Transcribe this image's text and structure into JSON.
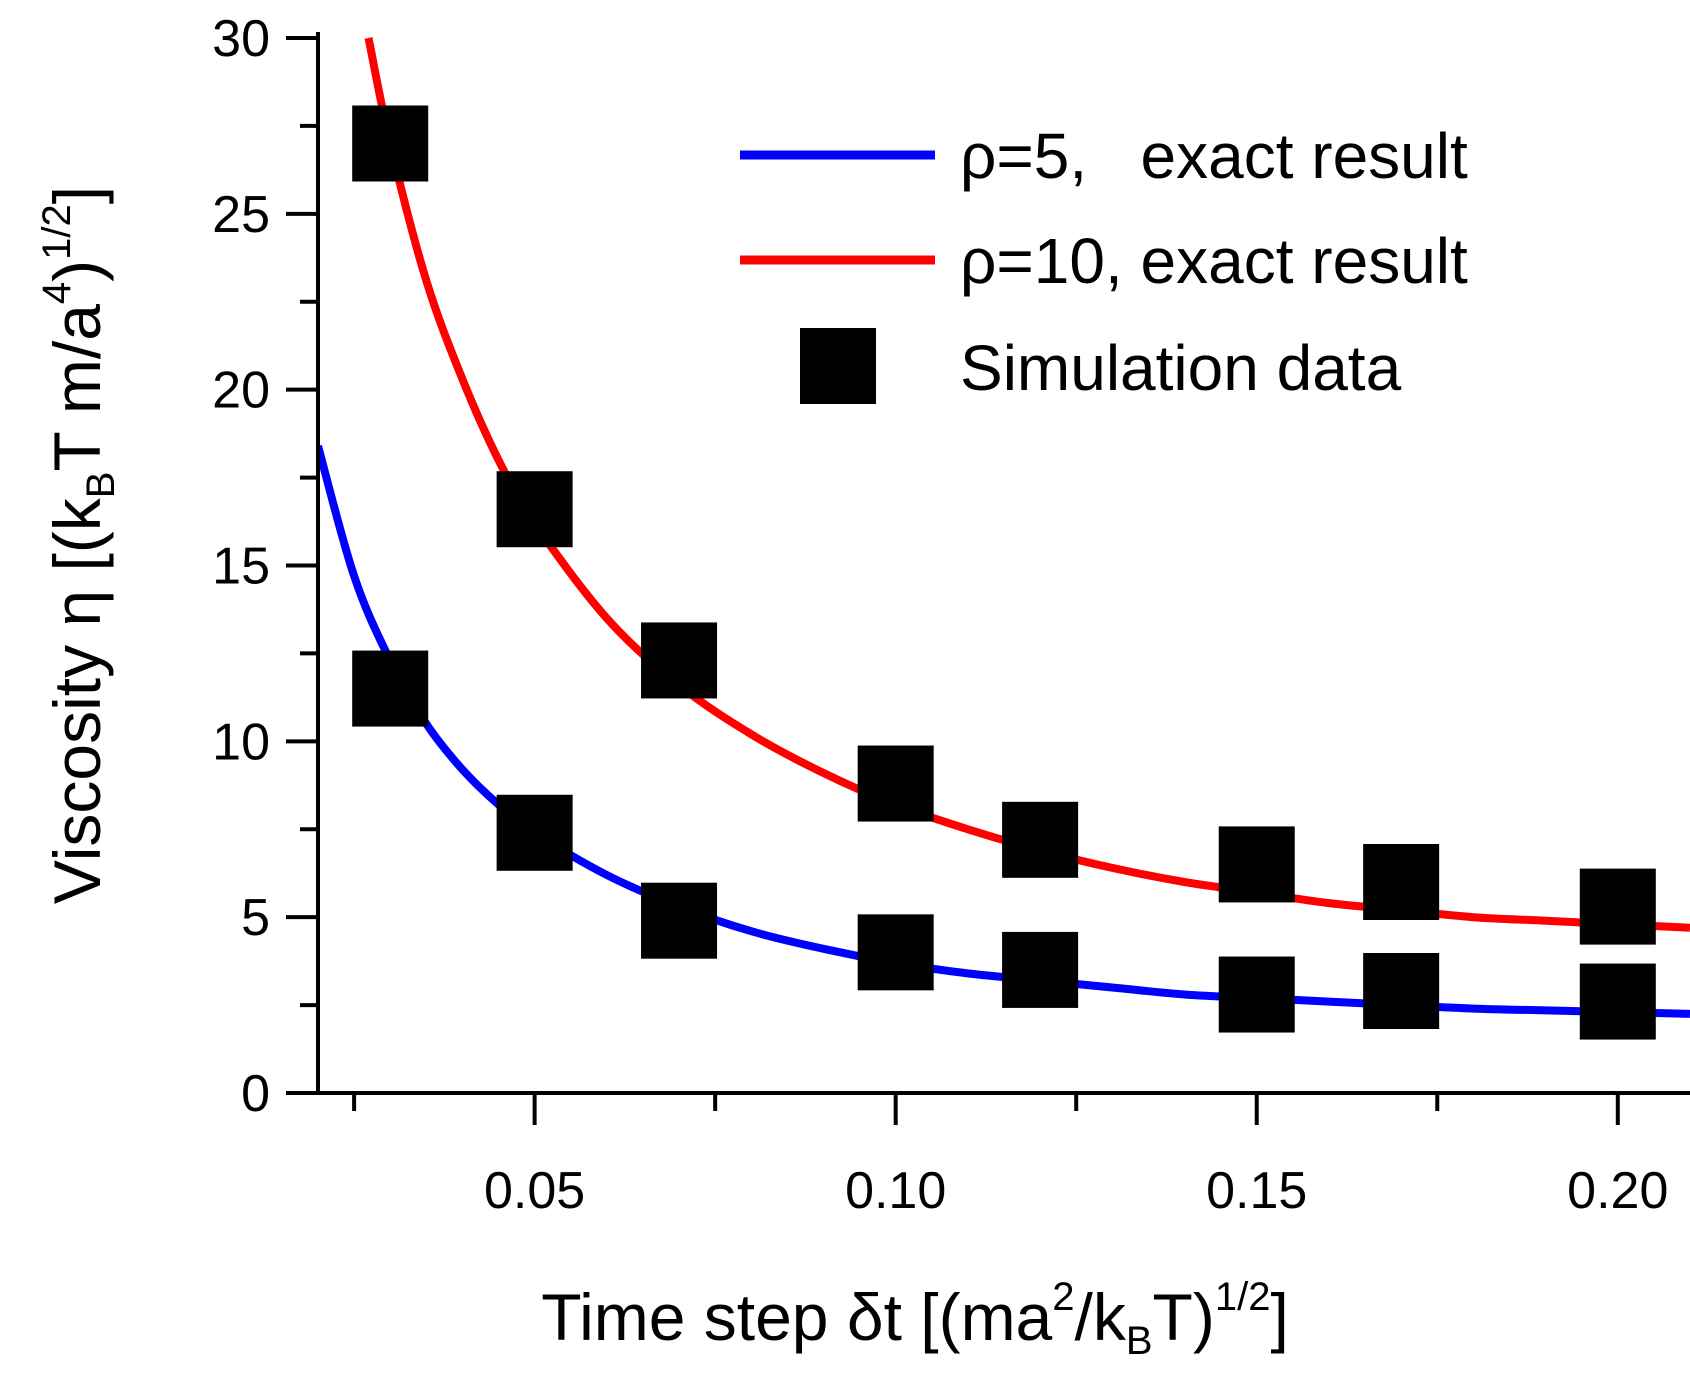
{
  "chart_data": {
    "type": "line",
    "title": "",
    "xlabel": {
      "prefix": "Time step δt [(ma",
      "sup1": "2",
      "mid": "/k",
      "sub": "B",
      "end": "T)",
      "sup2": "1/2",
      "close": "]"
    },
    "ylabel": {
      "prefix": "Viscosity η [(k",
      "sub": "B",
      "mid": "T m/a",
      "sup1": "4",
      "end": ")",
      "sup2": "1/2",
      "close": "]"
    },
    "xlim": [
      0.02,
      0.21
    ],
    "ylim": [
      0,
      30
    ],
    "x_ticks": [
      0.05,
      0.1,
      0.15,
      0.2
    ],
    "x_tick_labels": [
      "0.05",
      "0.10",
      "0.15",
      "0.20"
    ],
    "x_minor_ticks": [
      0.025,
      0.075,
      0.125,
      0.175
    ],
    "y_ticks": [
      0,
      5,
      10,
      15,
      20,
      25,
      30
    ],
    "y_tick_labels": [
      "0",
      "5",
      "10",
      "15",
      "20",
      "25",
      "30"
    ],
    "y_minor_ticks": [
      2.5,
      7.5,
      12.5,
      17.5,
      22.5,
      27.5
    ],
    "legend_position": "top-right",
    "series": [
      {
        "name": "ρ=5,   exact result",
        "kind": "line",
        "color": "#0000ff",
        "x": [
          0.02,
          0.025,
          0.03,
          0.035,
          0.04,
          0.045,
          0.05,
          0.06,
          0.07,
          0.08,
          0.09,
          0.1,
          0.11,
          0.12,
          0.13,
          0.14,
          0.15,
          0.16,
          0.17,
          0.18,
          0.19,
          0.2,
          0.21
        ],
        "y": [
          18.4,
          14.7,
          12.3,
          10.5,
          9.2,
          8.2,
          7.4,
          6.2,
          5.3,
          4.6,
          4.1,
          3.7,
          3.4,
          3.2,
          3.0,
          2.8,
          2.7,
          2.6,
          2.5,
          2.4,
          2.35,
          2.3,
          2.25
        ]
      },
      {
        "name": "ρ=10, exact result",
        "kind": "line",
        "color": "#ff0000",
        "x": [
          0.027,
          0.03,
          0.035,
          0.04,
          0.045,
          0.05,
          0.06,
          0.07,
          0.08,
          0.09,
          0.1,
          0.11,
          0.12,
          0.13,
          0.14,
          0.15,
          0.16,
          0.17,
          0.18,
          0.19,
          0.2,
          0.21
        ],
        "y": [
          30.0,
          27.0,
          23.1,
          20.3,
          18.0,
          16.2,
          13.5,
          11.6,
          10.2,
          9.1,
          8.2,
          7.5,
          6.9,
          6.4,
          6.0,
          5.7,
          5.4,
          5.2,
          5.0,
          4.9,
          4.8,
          4.7
        ]
      },
      {
        "name": "Simulation data",
        "kind": "scatter",
        "color": "#000000",
        "x": [
          0.03,
          0.05,
          0.07,
          0.1,
          0.12,
          0.15,
          0.17,
          0.2,
          0.03,
          0.05,
          0.07,
          0.1,
          0.12,
          0.15,
          0.17,
          0.2
        ],
        "y": [
          27.0,
          16.6,
          12.3,
          8.8,
          7.2,
          6.5,
          6.0,
          5.3,
          11.5,
          7.4,
          4.9,
          4.0,
          3.5,
          2.8,
          2.9,
          2.6
        ]
      }
    ]
  }
}
